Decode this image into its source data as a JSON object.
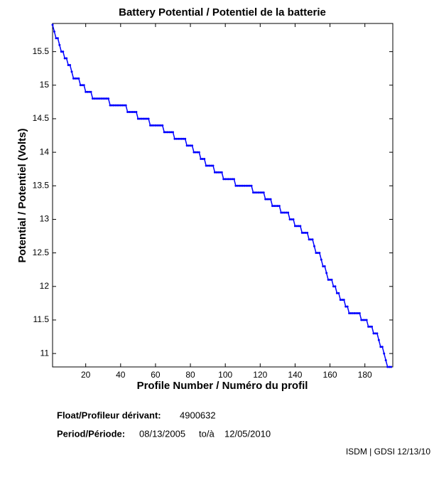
{
  "chart_data": {
    "type": "line",
    "title": "Battery Potential / Potentiel de la batterie",
    "xlabel": "Profile Number / Numéro du profil",
    "ylabel": "Potential / Potentiel (Volts)",
    "x": [
      1,
      2,
      3,
      4,
      5,
      6,
      7,
      8,
      9,
      10,
      11,
      12,
      13,
      14,
      15,
      16,
      17,
      18,
      19,
      20,
      21,
      22,
      23,
      24,
      25,
      26,
      27,
      28,
      29,
      30,
      31,
      32,
      33,
      34,
      35,
      36,
      37,
      38,
      39,
      40,
      41,
      42,
      43,
      44,
      45,
      46,
      47,
      48,
      49,
      50,
      51,
      52,
      53,
      54,
      55,
      56,
      57,
      58,
      59,
      60,
      61,
      62,
      63,
      64,
      65,
      66,
      67,
      68,
      69,
      70,
      71,
      72,
      73,
      74,
      75,
      76,
      77,
      78,
      79,
      80,
      81,
      82,
      83,
      84,
      85,
      86,
      87,
      88,
      89,
      90,
      91,
      92,
      93,
      94,
      95,
      96,
      97,
      98,
      99,
      100,
      101,
      102,
      103,
      104,
      105,
      106,
      107,
      108,
      109,
      110,
      111,
      112,
      113,
      114,
      115,
      116,
      117,
      118,
      119,
      120,
      121,
      122,
      123,
      124,
      125,
      126,
      127,
      128,
      129,
      130,
      131,
      132,
      133,
      134,
      135,
      136,
      137,
      138,
      139,
      140,
      141,
      142,
      143,
      144,
      145,
      146,
      147,
      148,
      149,
      150,
      151,
      152,
      153,
      154,
      155,
      156,
      157,
      158,
      159,
      160,
      161,
      162,
      163,
      164,
      165,
      166,
      167,
      168,
      169,
      170,
      171,
      172,
      173,
      174,
      175,
      176,
      177,
      178,
      179,
      180,
      181,
      182,
      183,
      184,
      185,
      186,
      187,
      188,
      189,
      190,
      191,
      192,
      193,
      194,
      195
    ],
    "series": [
      {
        "name": "Battery Potential",
        "color": "#0000ff",
        "values": [
          15.9,
          15.8,
          15.7,
          15.7,
          15.6,
          15.5,
          15.5,
          15.4,
          15.4,
          15.3,
          15.3,
          15.2,
          15.1,
          15.1,
          15.1,
          15.1,
          15.0,
          15.0,
          15.0,
          14.9,
          14.9,
          14.9,
          14.9,
          14.8,
          14.8,
          14.8,
          14.8,
          14.8,
          14.8,
          14.8,
          14.8,
          14.8,
          14.8,
          14.7,
          14.7,
          14.7,
          14.7,
          14.7,
          14.7,
          14.7,
          14.7,
          14.7,
          14.7,
          14.6,
          14.6,
          14.6,
          14.6,
          14.6,
          14.6,
          14.5,
          14.5,
          14.5,
          14.5,
          14.5,
          14.5,
          14.5,
          14.4,
          14.4,
          14.4,
          14.4,
          14.4,
          14.4,
          14.4,
          14.4,
          14.3,
          14.3,
          14.3,
          14.3,
          14.3,
          14.3,
          14.2,
          14.2,
          14.2,
          14.2,
          14.2,
          14.2,
          14.2,
          14.1,
          14.1,
          14.1,
          14.1,
          14.0,
          14.0,
          14.0,
          14.0,
          13.9,
          13.9,
          13.9,
          13.8,
          13.8,
          13.8,
          13.8,
          13.8,
          13.7,
          13.7,
          13.7,
          13.7,
          13.7,
          13.6,
          13.6,
          13.6,
          13.6,
          13.6,
          13.6,
          13.6,
          13.5,
          13.5,
          13.5,
          13.5,
          13.5,
          13.5,
          13.5,
          13.5,
          13.5,
          13.5,
          13.4,
          13.4,
          13.4,
          13.4,
          13.4,
          13.4,
          13.4,
          13.3,
          13.3,
          13.3,
          13.3,
          13.2,
          13.2,
          13.2,
          13.2,
          13.2,
          13.1,
          13.1,
          13.1,
          13.1,
          13.1,
          13.0,
          13.0,
          13.0,
          12.9,
          12.9,
          12.9,
          12.9,
          12.8,
          12.8,
          12.8,
          12.8,
          12.7,
          12.7,
          12.7,
          12.6,
          12.5,
          12.5,
          12.5,
          12.4,
          12.3,
          12.3,
          12.2,
          12.1,
          12.1,
          12.1,
          12.0,
          12.0,
          11.9,
          11.9,
          11.8,
          11.8,
          11.8,
          11.7,
          11.7,
          11.6,
          11.6,
          11.6,
          11.6,
          11.6,
          11.6,
          11.6,
          11.5,
          11.5,
          11.5,
          11.5,
          11.4,
          11.4,
          11.4,
          11.3,
          11.3,
          11.3,
          11.2,
          11.1,
          11.1,
          11.0,
          10.9,
          10.8,
          10.8,
          10.8
        ]
      }
    ],
    "xlim": [
      1,
      196
    ],
    "xticks": [
      20,
      40,
      60,
      80,
      100,
      120,
      140,
      160,
      180
    ],
    "ylim": [
      10.8,
      15.92
    ],
    "yticks": [
      11,
      11.5,
      12,
      12.5,
      13,
      13.5,
      14,
      14.5,
      15,
      15.5
    ],
    "info": {
      "float_label": "Float/Profileur dérivant:",
      "float_id": "4900632",
      "period_label": "Period/Période:",
      "start": "08/13/2005",
      "to": "to/à",
      "end": "12/05/2010",
      "footer": "ISDM | GDSI 12/13/10"
    }
  }
}
